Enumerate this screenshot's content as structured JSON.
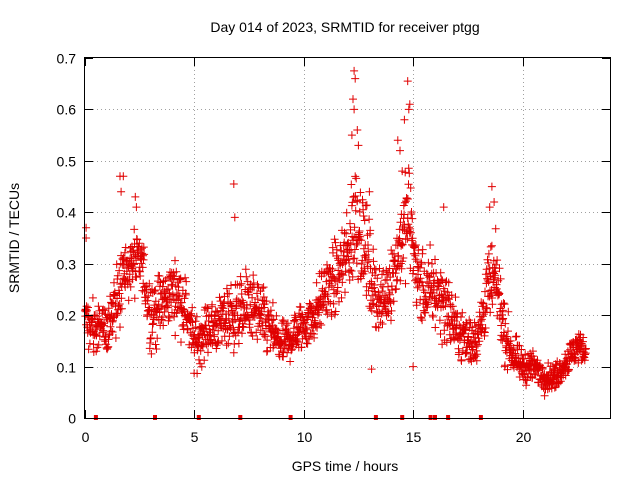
{
  "chart_data": {
    "type": "scatter",
    "title": "Day 014 of 2023, SRMTID for receiver ptgg",
    "xlabel": "GPS time / hours",
    "ylabel": "SRMTID / TECUs",
    "xlim": [
      0,
      24
    ],
    "ylim": [
      0,
      0.7
    ],
    "grid": true,
    "legend": "none",
    "marker": "+",
    "color": "#e00000",
    "xticks": [
      0,
      5,
      10,
      15,
      20
    ],
    "yticks": [
      0,
      0.1,
      0.2,
      0.3,
      0.4,
      0.5,
      0.6,
      0.7
    ],
    "xtick_labels": [
      "0",
      "5",
      "10",
      "15",
      "20"
    ],
    "ytick_labels": [
      "0",
      "0.1",
      "0.2",
      "0.3",
      "0.4",
      "0.5",
      "0.6",
      "0.7"
    ],
    "envelope": {
      "hours": [
        0.0,
        0.3,
        0.7,
        1.0,
        1.5,
        1.8,
        2.2,
        2.6,
        3.0,
        3.5,
        4.0,
        4.3,
        4.7,
        5.0,
        5.5,
        6.0,
        6.5,
        7.0,
        7.5,
        8.0,
        8.5,
        9.0,
        9.5,
        10.0,
        10.5,
        11.0,
        11.5,
        12.0,
        12.4,
        12.8,
        13.2,
        13.6,
        14.0,
        14.5,
        14.8,
        15.2,
        15.6,
        16.0,
        16.5,
        17.0,
        17.5,
        18.0,
        18.4,
        18.8,
        19.2,
        19.6,
        20.0,
        20.5,
        21.0,
        21.5,
        22.0,
        22.5,
        22.9
      ],
      "center": [
        0.2,
        0.17,
        0.18,
        0.17,
        0.25,
        0.28,
        0.3,
        0.3,
        0.2,
        0.22,
        0.25,
        0.24,
        0.2,
        0.14,
        0.17,
        0.18,
        0.2,
        0.2,
        0.22,
        0.2,
        0.17,
        0.14,
        0.16,
        0.18,
        0.2,
        0.25,
        0.27,
        0.32,
        0.4,
        0.33,
        0.25,
        0.22,
        0.27,
        0.35,
        0.4,
        0.27,
        0.24,
        0.25,
        0.22,
        0.17,
        0.15,
        0.16,
        0.25,
        0.27,
        0.16,
        0.12,
        0.1,
        0.1,
        0.08,
        0.08,
        0.11,
        0.14,
        0.13
      ],
      "spread": [
        0.06,
        0.05,
        0.05,
        0.06,
        0.08,
        0.07,
        0.07,
        0.06,
        0.07,
        0.06,
        0.06,
        0.06,
        0.06,
        0.05,
        0.05,
        0.05,
        0.06,
        0.07,
        0.07,
        0.06,
        0.05,
        0.04,
        0.05,
        0.05,
        0.05,
        0.06,
        0.07,
        0.09,
        0.12,
        0.1,
        0.07,
        0.06,
        0.07,
        0.09,
        0.1,
        0.08,
        0.07,
        0.08,
        0.07,
        0.05,
        0.05,
        0.05,
        0.08,
        0.07,
        0.05,
        0.04,
        0.03,
        0.03,
        0.025,
        0.025,
        0.03,
        0.035,
        0.02
      ],
      "step_hours": 0.0125
    },
    "outliers": [
      {
        "x": 0.05,
        "y": 0.37
      },
      {
        "x": 0.05,
        "y": 0.35
      },
      {
        "x": 1.6,
        "y": 0.47
      },
      {
        "x": 1.75,
        "y": 0.47
      },
      {
        "x": 1.65,
        "y": 0.44
      },
      {
        "x": 2.3,
        "y": 0.43
      },
      {
        "x": 2.35,
        "y": 0.41
      },
      {
        "x": 6.8,
        "y": 0.455
      },
      {
        "x": 6.85,
        "y": 0.39
      },
      {
        "x": 12.3,
        "y": 0.675
      },
      {
        "x": 12.35,
        "y": 0.66
      },
      {
        "x": 12.25,
        "y": 0.62
      },
      {
        "x": 12.3,
        "y": 0.6
      },
      {
        "x": 12.2,
        "y": 0.55
      },
      {
        "x": 12.45,
        "y": 0.56
      },
      {
        "x": 12.5,
        "y": 0.53
      },
      {
        "x": 14.3,
        "y": 0.54
      },
      {
        "x": 14.4,
        "y": 0.52
      },
      {
        "x": 14.6,
        "y": 0.58
      },
      {
        "x": 14.75,
        "y": 0.655
      },
      {
        "x": 14.8,
        "y": 0.6
      },
      {
        "x": 14.85,
        "y": 0.61
      },
      {
        "x": 14.5,
        "y": 0.48
      },
      {
        "x": 13.0,
        "y": 0.44
      },
      {
        "x": 16.4,
        "y": 0.41
      },
      {
        "x": 18.6,
        "y": 0.45
      },
      {
        "x": 18.5,
        "y": 0.41
      },
      {
        "x": 18.7,
        "y": 0.42
      },
      {
        "x": 13.1,
        "y": 0.095
      },
      {
        "x": 15.0,
        "y": 0.1
      }
    ],
    "zero_marks": [
      0.5,
      3.2,
      5.2,
      7.1,
      9.4,
      13.3,
      14.5,
      15.8,
      16.0,
      16.6,
      18.1
    ]
  }
}
